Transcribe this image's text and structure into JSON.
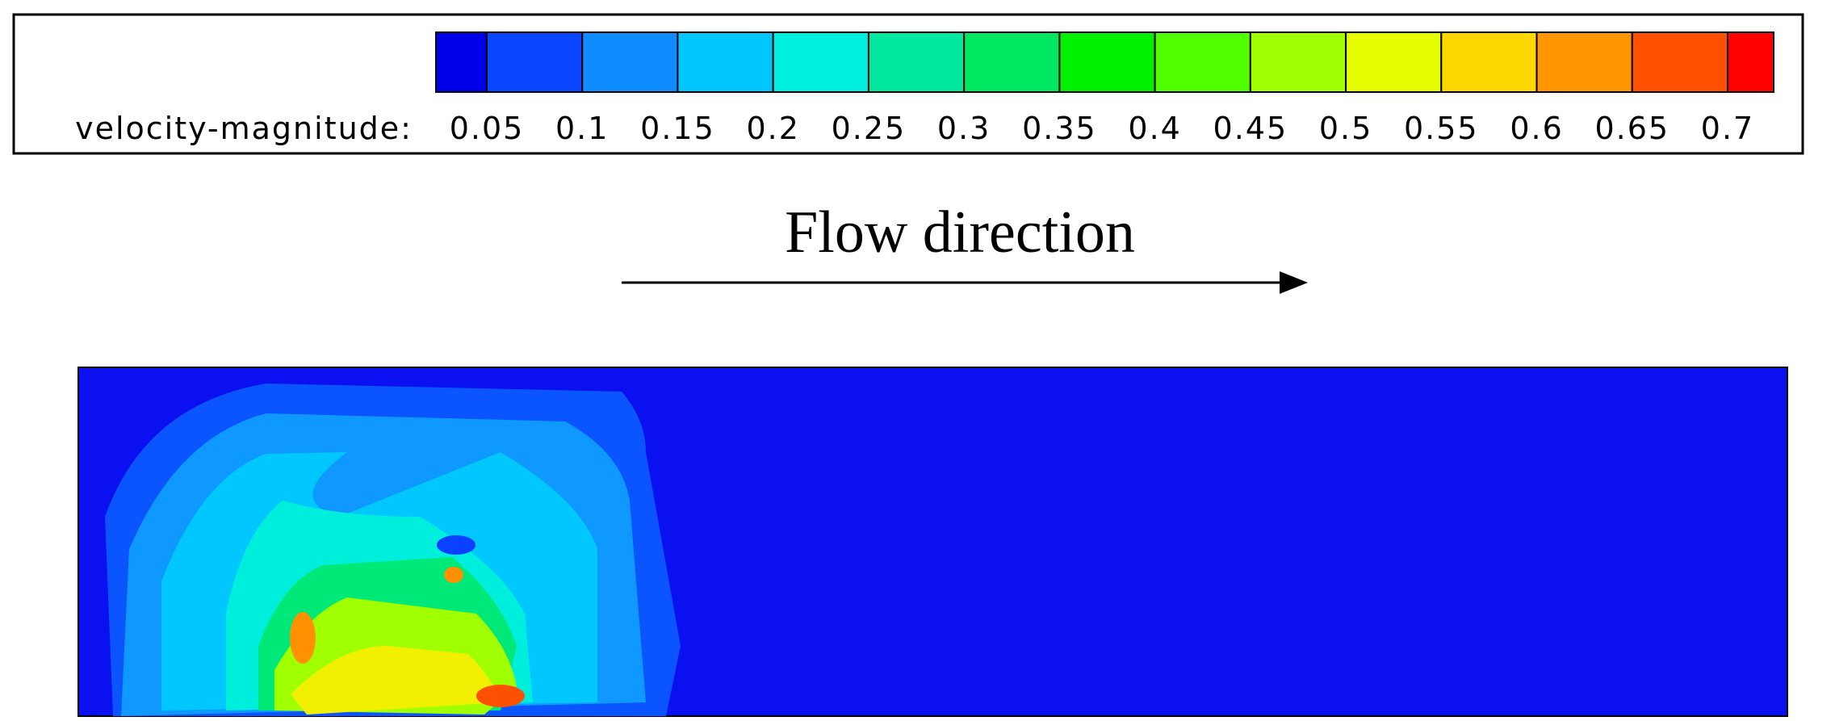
{
  "colorbar": {
    "label": "velocity-magnitude:",
    "ticks": [
      "0.05",
      "0.1",
      "0.15",
      "0.2",
      "0.25",
      "0.3",
      "0.35",
      "0.4",
      "0.45",
      "0.5",
      "0.55",
      "0.6",
      "0.65",
      "0.7"
    ]
  },
  "flow": {
    "label": "Flow direction"
  }
}
